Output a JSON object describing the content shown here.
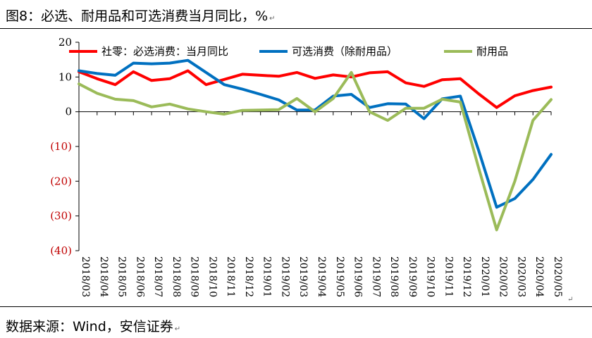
{
  "header": {
    "title": "图8：必选、耐用品和可选消费当月同比，%"
  },
  "footer": {
    "source": "数据来源：Wind，安信证券"
  },
  "colors": {
    "axis": "#000000",
    "negative_tick": "#c00000"
  },
  "chart_data": {
    "type": "line",
    "x": [
      "2018/03",
      "2018/04",
      "2018/05",
      "2018/06",
      "2018/07",
      "2018/08",
      "2018/09",
      "2018/10",
      "2018/11",
      "2018/12",
      "2019/01",
      "2019/02",
      "2019/03",
      "2019/04",
      "2019/05",
      "2019/06",
      "2019/07",
      "2019/08",
      "2019/09",
      "2019/10",
      "2019/11",
      "2019/12",
      "2020/01",
      "2020/02",
      "2020/03",
      "2020/04",
      "2020/05"
    ],
    "ylim": [
      -40,
      20
    ],
    "yticks": [
      20,
      10,
      0,
      -10,
      -20,
      -30,
      -40
    ],
    "ytick_labels": [
      "20",
      "10",
      "0",
      "(10)",
      "(20)",
      "(30)",
      "(40)"
    ],
    "grid": false,
    "legend_position": "top",
    "series": [
      {
        "name": "社零：必选消费：当月同比",
        "color": "#ff0000",
        "values": [
          11.5,
          9.5,
          7.8,
          11.5,
          9.0,
          9.5,
          11.8,
          7.8,
          9.3,
          10.8,
          10.5,
          10.2,
          11.3,
          9.6,
          10.6,
          10.0,
          11.2,
          11.5,
          8.3,
          7.3,
          9.2,
          9.5,
          5.2,
          1.2,
          4.6,
          6.1,
          7.1
        ]
      },
      {
        "name": "可选消费（除耐用品）",
        "color": "#0070c0",
        "values": [
          11.8,
          11.0,
          10.5,
          14.0,
          13.8,
          14.0,
          14.8,
          11.3,
          7.8,
          6.5,
          5.0,
          3.4,
          0.5,
          0.5,
          4.5,
          5.0,
          1.2,
          2.3,
          2.2,
          -2.0,
          3.7,
          4.5,
          -11.0,
          -27.5,
          -25.0,
          -19.5,
          -12.3
        ]
      },
      {
        "name": "耐用品",
        "color": "#9bbb59",
        "values": [
          8.0,
          5.3,
          3.6,
          3.2,
          1.4,
          2.2,
          0.8,
          0.0,
          -0.7,
          0.4,
          0.5,
          0.6,
          3.8,
          0.0,
          3.8,
          11.3,
          0.0,
          -2.5,
          1.0,
          1.0,
          3.6,
          2.8,
          -16.0,
          -34.0,
          -20.0,
          -2.5,
          3.5
        ]
      }
    ]
  }
}
